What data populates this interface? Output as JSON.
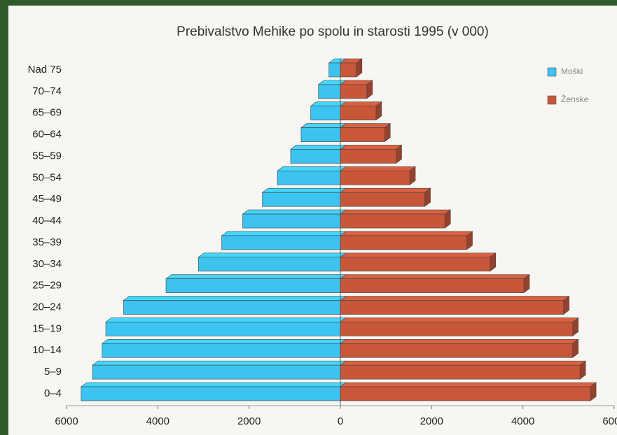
{
  "chart_data": {
    "type": "pyramid",
    "title": "Prebivalstvo Mehike po spolu in starosti 1995 (v 000)",
    "categories": [
      "0–4",
      "5–9",
      "10–14",
      "15–19",
      "20–24",
      "25–29",
      "30–34",
      "35–39",
      "40–44",
      "45–49",
      "50–54",
      "55–59",
      "60–64",
      "65–69",
      "70–74",
      "Nad 75"
    ],
    "series": [
      {
        "name": "Moški",
        "color": "#3cc3ef",
        "side": "left",
        "values": [
          5680,
          5430,
          5220,
          5140,
          4750,
          3820,
          3110,
          2600,
          2140,
          1710,
          1380,
          1090,
          860,
          650,
          480,
          250
        ]
      },
      {
        "name": "Ženske",
        "color": "#c8573a",
        "side": "right",
        "values": [
          5480,
          5250,
          5090,
          5090,
          4890,
          4020,
          3280,
          2770,
          2290,
          1850,
          1520,
          1220,
          970,
          780,
          580,
          350
        ]
      }
    ],
    "xlim": [
      -6000,
      6000
    ],
    "xticks": [
      {
        "value": -6000,
        "label": "6000"
      },
      {
        "value": -4000,
        "label": "4000"
      },
      {
        "value": -2000,
        "label": "2000"
      },
      0,
      2000,
      4000,
      6000
    ],
    "legend": "upper right"
  }
}
